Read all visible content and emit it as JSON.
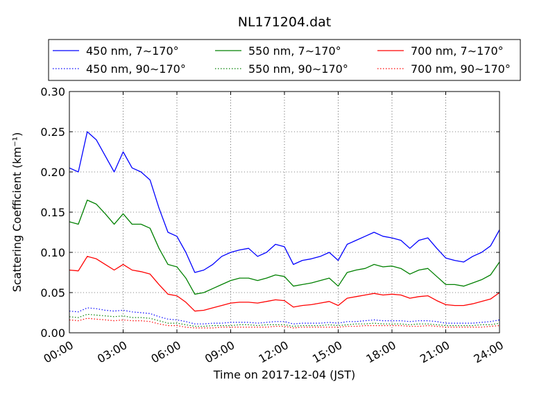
{
  "chart_data": {
    "type": "line",
    "title": "NL171204.dat",
    "xlabel": "Time on 2017-12-04 (JST)",
    "ylabel": "Scattering Coefficient (km⁻¹)",
    "x_unit": "hours",
    "xlim": [
      0,
      24
    ],
    "ylim": [
      0,
      0.3
    ],
    "x_ticks": [
      "00:00",
      "03:00",
      "06:00",
      "09:00",
      "12:00",
      "15:00",
      "18:00",
      "21:00",
      "24:00"
    ],
    "y_ticks": [
      "0.00",
      "0.05",
      "0.10",
      "0.15",
      "0.20",
      "0.25",
      "0.30"
    ],
    "grid": true,
    "legend_position": "top",
    "x": [
      0,
      0.5,
      1,
      1.5,
      2,
      2.5,
      3,
      3.5,
      4,
      4.5,
      5,
      5.5,
      6,
      6.5,
      7,
      7.5,
      8,
      8.5,
      9,
      9.5,
      10,
      10.5,
      11,
      11.5,
      12,
      12.5,
      13,
      13.5,
      14,
      14.5,
      15,
      15.5,
      16,
      16.5,
      17,
      17.5,
      18,
      18.5,
      19,
      19.5,
      20,
      20.5,
      21,
      21.5,
      22,
      22.5,
      23,
      23.5,
      24
    ],
    "series": [
      {
        "name": "450 nm, 7∼170°",
        "color": "#0000ff",
        "style": "solid",
        "values": [
          0.205,
          0.2,
          0.25,
          0.24,
          0.22,
          0.2,
          0.225,
          0.205,
          0.2,
          0.19,
          0.155,
          0.125,
          0.12,
          0.1,
          0.075,
          0.078,
          0.085,
          0.095,
          0.1,
          0.103,
          0.105,
          0.095,
          0.1,
          0.11,
          0.107,
          0.085,
          0.09,
          0.092,
          0.095,
          0.1,
          0.09,
          0.11,
          0.115,
          0.12,
          0.125,
          0.12,
          0.118,
          0.115,
          0.105,
          0.115,
          0.118,
          0.105,
          0.093,
          0.09,
          0.088,
          0.095,
          0.1,
          0.108,
          0.128
        ]
      },
      {
        "name": "450 nm, 90∼170°",
        "color": "#0000ff",
        "style": "dotted",
        "values": [
          0.027,
          0.026,
          0.031,
          0.03,
          0.028,
          0.027,
          0.028,
          0.026,
          0.025,
          0.024,
          0.02,
          0.017,
          0.016,
          0.014,
          0.011,
          0.011,
          0.012,
          0.012,
          0.013,
          0.013,
          0.013,
          0.012,
          0.013,
          0.014,
          0.014,
          0.011,
          0.012,
          0.012,
          0.012,
          0.013,
          0.012,
          0.014,
          0.014,
          0.015,
          0.016,
          0.015,
          0.015,
          0.015,
          0.014,
          0.015,
          0.015,
          0.014,
          0.012,
          0.012,
          0.012,
          0.012,
          0.013,
          0.014,
          0.016
        ]
      },
      {
        "name": "550 nm, 7∼170°",
        "color": "#008000",
        "style": "solid",
        "values": [
          0.138,
          0.135,
          0.165,
          0.16,
          0.148,
          0.135,
          0.148,
          0.135,
          0.135,
          0.13,
          0.105,
          0.085,
          0.082,
          0.068,
          0.048,
          0.05,
          0.055,
          0.06,
          0.065,
          0.068,
          0.068,
          0.065,
          0.068,
          0.072,
          0.07,
          0.058,
          0.06,
          0.062,
          0.065,
          0.068,
          0.058,
          0.075,
          0.078,
          0.08,
          0.085,
          0.082,
          0.083,
          0.08,
          0.073,
          0.078,
          0.08,
          0.07,
          0.06,
          0.06,
          0.058,
          0.062,
          0.066,
          0.072,
          0.088
        ]
      },
      {
        "name": "550 nm, 90∼170°",
        "color": "#008000",
        "style": "dotted",
        "values": [
          0.02,
          0.019,
          0.023,
          0.022,
          0.021,
          0.02,
          0.021,
          0.019,
          0.019,
          0.018,
          0.015,
          0.012,
          0.012,
          0.01,
          0.008,
          0.008,
          0.009,
          0.009,
          0.009,
          0.01,
          0.01,
          0.009,
          0.01,
          0.01,
          0.01,
          0.008,
          0.009,
          0.009,
          0.009,
          0.01,
          0.009,
          0.01,
          0.011,
          0.011,
          0.012,
          0.011,
          0.011,
          0.011,
          0.01,
          0.011,
          0.011,
          0.01,
          0.009,
          0.009,
          0.009,
          0.009,
          0.01,
          0.01,
          0.012
        ]
      },
      {
        "name": "700 nm, 7∼170°",
        "color": "#ff0000",
        "style": "solid",
        "values": [
          0.078,
          0.077,
          0.095,
          0.092,
          0.085,
          0.078,
          0.085,
          0.078,
          0.076,
          0.073,
          0.06,
          0.048,
          0.046,
          0.038,
          0.027,
          0.028,
          0.031,
          0.034,
          0.037,
          0.038,
          0.038,
          0.037,
          0.039,
          0.041,
          0.04,
          0.032,
          0.034,
          0.035,
          0.037,
          0.039,
          0.034,
          0.043,
          0.045,
          0.047,
          0.049,
          0.047,
          0.048,
          0.047,
          0.043,
          0.045,
          0.046,
          0.04,
          0.035,
          0.034,
          0.034,
          0.036,
          0.039,
          0.042,
          0.05
        ]
      },
      {
        "name": "700 nm, 90∼170°",
        "color": "#ff0000",
        "style": "dotted",
        "values": [
          0.016,
          0.015,
          0.018,
          0.017,
          0.016,
          0.015,
          0.016,
          0.015,
          0.015,
          0.014,
          0.011,
          0.009,
          0.009,
          0.007,
          0.006,
          0.006,
          0.006,
          0.007,
          0.007,
          0.007,
          0.007,
          0.007,
          0.007,
          0.008,
          0.008,
          0.006,
          0.007,
          0.007,
          0.007,
          0.007,
          0.007,
          0.008,
          0.008,
          0.009,
          0.009,
          0.009,
          0.009,
          0.009,
          0.008,
          0.008,
          0.009,
          0.008,
          0.007,
          0.007,
          0.007,
          0.007,
          0.007,
          0.008,
          0.009
        ]
      }
    ]
  }
}
